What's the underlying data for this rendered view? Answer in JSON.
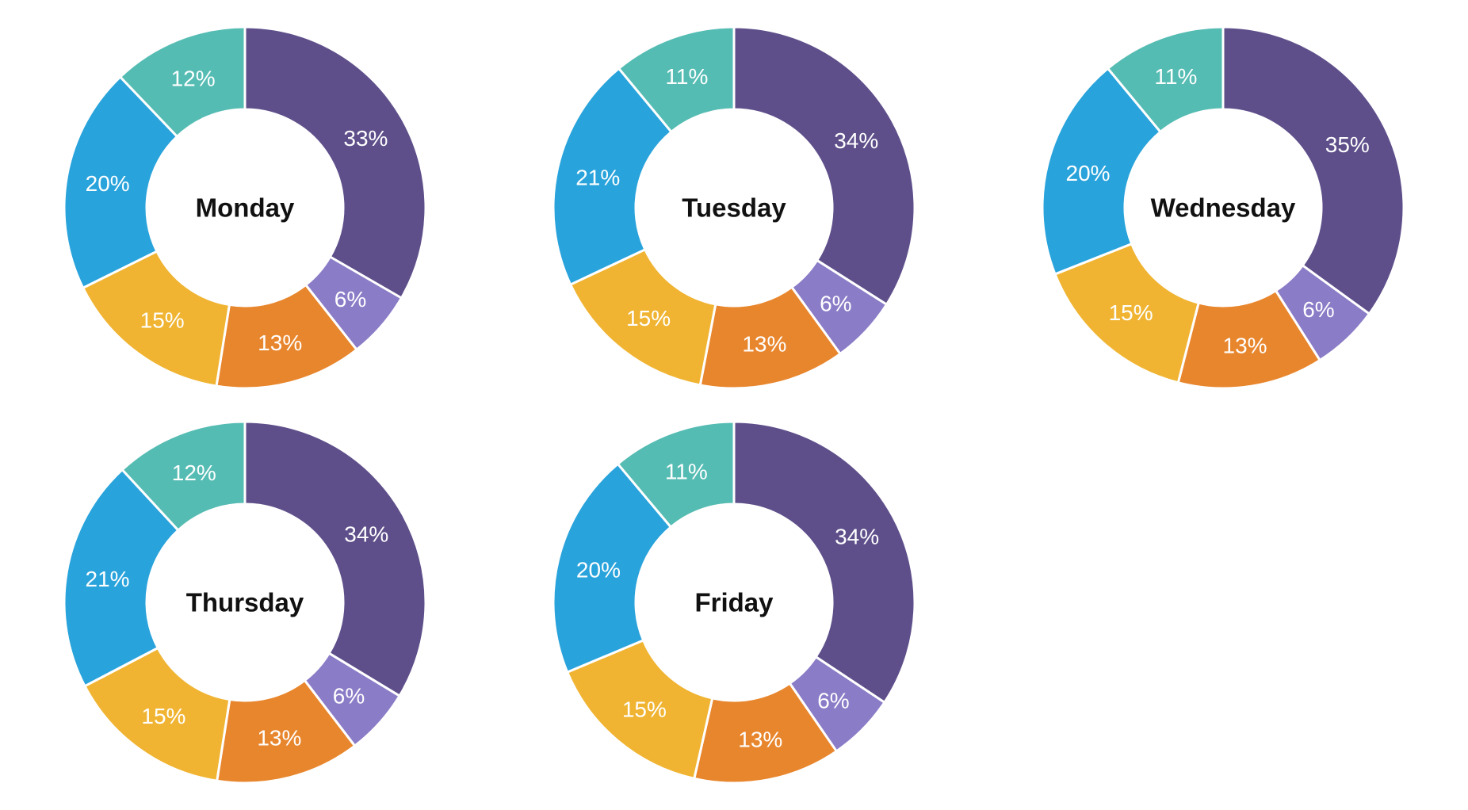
{
  "page": {
    "background_color": "#ffffff"
  },
  "styles": {
    "segment_label_color": "#ffffff",
    "center_title_color": "#111111",
    "separator_color": "#ffffff",
    "separator_width": 3
  },
  "chart_data": [
    {
      "type": "pie",
      "subtype": "donut",
      "title": "Monday",
      "direction": "clockwise",
      "start_angle_deg": 0,
      "inner_radius_ratio": 0.545,
      "legend": "none",
      "segments": [
        {
          "label": "33%",
          "value": 33,
          "color": "#5e4f8a"
        },
        {
          "label": "6%",
          "value": 6,
          "color": "#8b7cc7"
        },
        {
          "label": "13%",
          "value": 13,
          "color": "#e8862d"
        },
        {
          "label": "15%",
          "value": 15,
          "color": "#f0b432"
        },
        {
          "label": "20%",
          "value": 20,
          "color": "#29a3db"
        },
        {
          "label": "12%",
          "value": 12,
          "color": "#55bcb3"
        }
      ]
    },
    {
      "type": "pie",
      "subtype": "donut",
      "title": "Tuesday",
      "direction": "clockwise",
      "start_angle_deg": 0,
      "inner_radius_ratio": 0.545,
      "legend": "none",
      "segments": [
        {
          "label": "34%",
          "value": 34,
          "color": "#5e4f8a"
        },
        {
          "label": "6%",
          "value": 6,
          "color": "#8b7cc7"
        },
        {
          "label": "13%",
          "value": 13,
          "color": "#e8862d"
        },
        {
          "label": "15%",
          "value": 15,
          "color": "#f0b432"
        },
        {
          "label": "21%",
          "value": 21,
          "color": "#29a3db"
        },
        {
          "label": "11%",
          "value": 11,
          "color": "#55bcb3"
        }
      ]
    },
    {
      "type": "pie",
      "subtype": "donut",
      "title": "Wednesday",
      "direction": "clockwise",
      "start_angle_deg": 0,
      "inner_radius_ratio": 0.545,
      "legend": "none",
      "segments": [
        {
          "label": "35%",
          "value": 35,
          "color": "#5e4f8a"
        },
        {
          "label": "6%",
          "value": 6,
          "color": "#8b7cc7"
        },
        {
          "label": "13%",
          "value": 13,
          "color": "#e8862d"
        },
        {
          "label": "15%",
          "value": 15,
          "color": "#f0b432"
        },
        {
          "label": "20%",
          "value": 20,
          "color": "#29a3db"
        },
        {
          "label": "11%",
          "value": 11,
          "color": "#55bcb3"
        }
      ]
    },
    {
      "type": "pie",
      "subtype": "donut",
      "title": "Thursday",
      "direction": "clockwise",
      "start_angle_deg": 0,
      "inner_radius_ratio": 0.545,
      "legend": "none",
      "segments": [
        {
          "label": "34%",
          "value": 34,
          "color": "#5e4f8a"
        },
        {
          "label": "6%",
          "value": 6,
          "color": "#8b7cc7"
        },
        {
          "label": "13%",
          "value": 13,
          "color": "#e8862d"
        },
        {
          "label": "15%",
          "value": 15,
          "color": "#f0b432"
        },
        {
          "label": "21%",
          "value": 21,
          "color": "#29a3db"
        },
        {
          "label": "12%",
          "value": 12,
          "color": "#55bcb3"
        }
      ]
    },
    {
      "type": "pie",
      "subtype": "donut",
      "title": "Friday",
      "direction": "clockwise",
      "start_angle_deg": 0,
      "inner_radius_ratio": 0.545,
      "legend": "none",
      "segments": [
        {
          "label": "34%",
          "value": 34,
          "color": "#5e4f8a"
        },
        {
          "label": "6%",
          "value": 6,
          "color": "#8b7cc7"
        },
        {
          "label": "13%",
          "value": 13,
          "color": "#e8862d"
        },
        {
          "label": "15%",
          "value": 15,
          "color": "#f0b432"
        },
        {
          "label": "20%",
          "value": 20,
          "color": "#29a3db"
        },
        {
          "label": "11%",
          "value": 11,
          "color": "#55bcb3"
        }
      ]
    }
  ]
}
